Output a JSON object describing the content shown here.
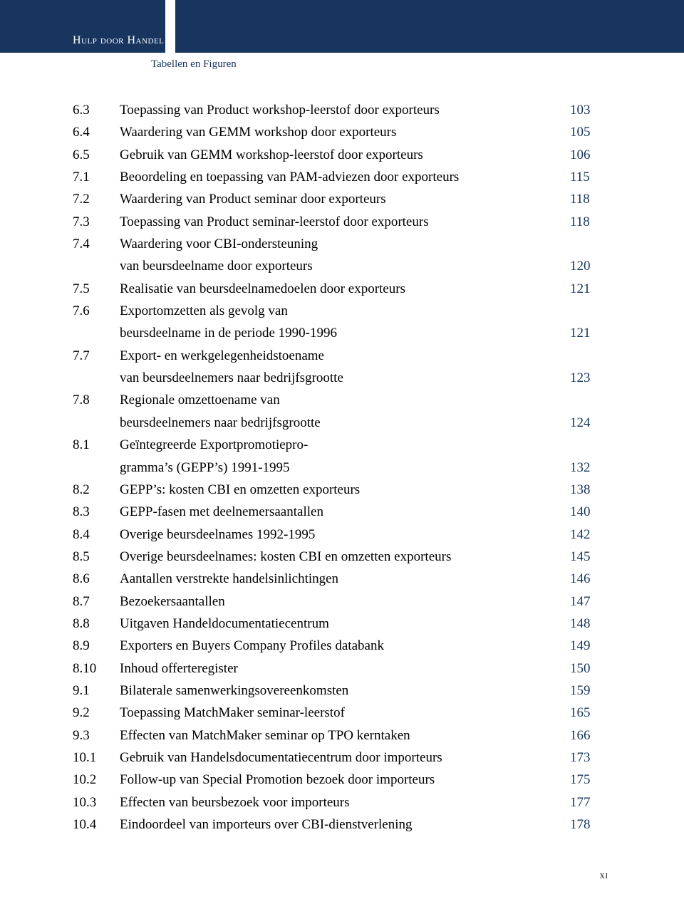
{
  "header": {
    "title": "Hulp door Handel",
    "subtitle": "Tabellen en Figuren"
  },
  "colors": {
    "band": "#17355e",
    "accent": "#17355e",
    "text": "#000000",
    "background": "#ffffff"
  },
  "toc": [
    {
      "num": "6.3",
      "title": "Toepassing van Product workshop-leerstof door exporteurs",
      "page": "103"
    },
    {
      "num": "6.4",
      "title": "Waardering van GEMM workshop door exporteurs",
      "page": "105"
    },
    {
      "num": "6.5",
      "title": "Gebruik van GEMM workshop-leerstof door exporteurs",
      "page": "106"
    },
    {
      "num": "7.1",
      "title": "Beoordeling en toepassing van PAM-adviezen door exporteurs",
      "page": "115"
    },
    {
      "num": "7.2",
      "title": "Waardering van Product seminar door exporteurs",
      "page": "118"
    },
    {
      "num": "7.3",
      "title": "Toepassing van Product seminar-leerstof door exporteurs",
      "page": "118"
    },
    {
      "num": "7.4",
      "title": "Waardering voor CBI-ondersteuning",
      "cont": "van beursdeelname door exporteurs",
      "page": "120"
    },
    {
      "num": "7.5",
      "title": "Realisatie van beursdeelnamedoelen door exporteurs",
      "page": "121"
    },
    {
      "num": "7.6",
      "title": "Exportomzetten als gevolg van",
      "cont": "beursdeelname in de periode 1990-1996",
      "page": "121"
    },
    {
      "num": "7.7",
      "title": "Export- en werkgelegenheidstoename",
      "cont": "van beursdeelnemers naar bedrijfsgrootte",
      "page": "123"
    },
    {
      "num": "7.8",
      "title": "Regionale omzettoename van",
      "cont": "beursdeelnemers naar bedrijfsgrootte",
      "page": "124"
    },
    {
      "num": "8.1",
      "title": "Geïntegreerde Exportpromotiepro-",
      "cont": "gramma’s (GEPP’s) 1991-1995",
      "page": "132"
    },
    {
      "num": "8.2",
      "title": "GEPP’s: kosten CBI en omzetten exporteurs",
      "page": "138"
    },
    {
      "num": "8.3",
      "title": "GEPP-fasen met deelnemersaantallen",
      "page": "140"
    },
    {
      "num": "8.4",
      "title": "Overige beursdeelnames 1992-1995",
      "page": "142"
    },
    {
      "num": "8.5",
      "title": "Overige beursdeelnames: kosten CBI en omzetten exporteurs",
      "page": "145"
    },
    {
      "num": "8.6",
      "title": "Aantallen verstrekte handelsinlichtingen",
      "page": "146"
    },
    {
      "num": "8.7",
      "title": "Bezoekersaantallen",
      "page": "147"
    },
    {
      "num": "8.8",
      "title": "Uitgaven Handeldocumentatiecentrum",
      "page": "148"
    },
    {
      "num": "8.9",
      "title": "Exporters en Buyers Company Profiles databank",
      "page": "149"
    },
    {
      "num": "8.10",
      "title": "Inhoud offerteregister",
      "page": "150"
    },
    {
      "num": "9.1",
      "title": "Bilaterale samenwerkingsovereenkomsten",
      "page": "159"
    },
    {
      "num": "9.2",
      "title": "Toepassing MatchMaker seminar-leerstof",
      "page": "165"
    },
    {
      "num": "9.3",
      "title": "Effecten van MatchMaker seminar op TPO kerntaken",
      "page": "166"
    },
    {
      "num": "10.1",
      "title": "Gebruik van Handelsdocumentatiecentrum door importeurs",
      "page": "173"
    },
    {
      "num": "10.2",
      "title": "Follow-up van Special Promotion bezoek door importeurs",
      "page": "175"
    },
    {
      "num": "10.3",
      "title": "Effecten van beursbezoek voor importeurs",
      "page": "177"
    },
    {
      "num": "10.4",
      "title": "Eindoordeel van importeurs over CBI-dienstverlening",
      "page": "178"
    }
  ],
  "pageNumber": "xi"
}
